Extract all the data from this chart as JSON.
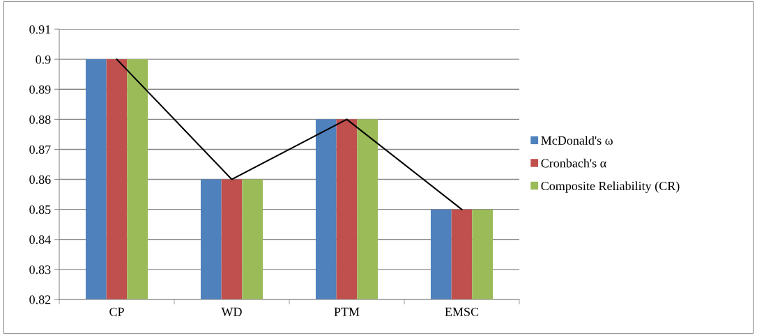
{
  "chart_data": {
    "type": "bar",
    "categories": [
      "CP",
      "WD",
      "PTM",
      "EMSC"
    ],
    "series": [
      {
        "name": "McDonald's ω",
        "color": "#4f81bd",
        "values": [
          0.9,
          0.86,
          0.88,
          0.85
        ]
      },
      {
        "name": "Cronbach's α",
        "color": "#c0504d",
        "values": [
          0.9,
          0.86,
          0.88,
          0.85
        ]
      },
      {
        "name": "Composite Reliability (CR)",
        "color": "#9bbb59",
        "values": [
          0.9,
          0.86,
          0.88,
          0.85
        ]
      },
      {
        "type": "line",
        "color": "#000000",
        "values": [
          0.9,
          0.86,
          0.88,
          0.85
        ]
      }
    ],
    "ylim": [
      0.82,
      0.91
    ],
    "yticks": [
      0.82,
      0.83,
      0.84,
      0.85,
      0.86,
      0.87,
      0.88,
      0.89,
      0.9,
      0.91
    ],
    "grid": "y",
    "legend": "right",
    "marker": "none",
    "line_style": "solid"
  }
}
